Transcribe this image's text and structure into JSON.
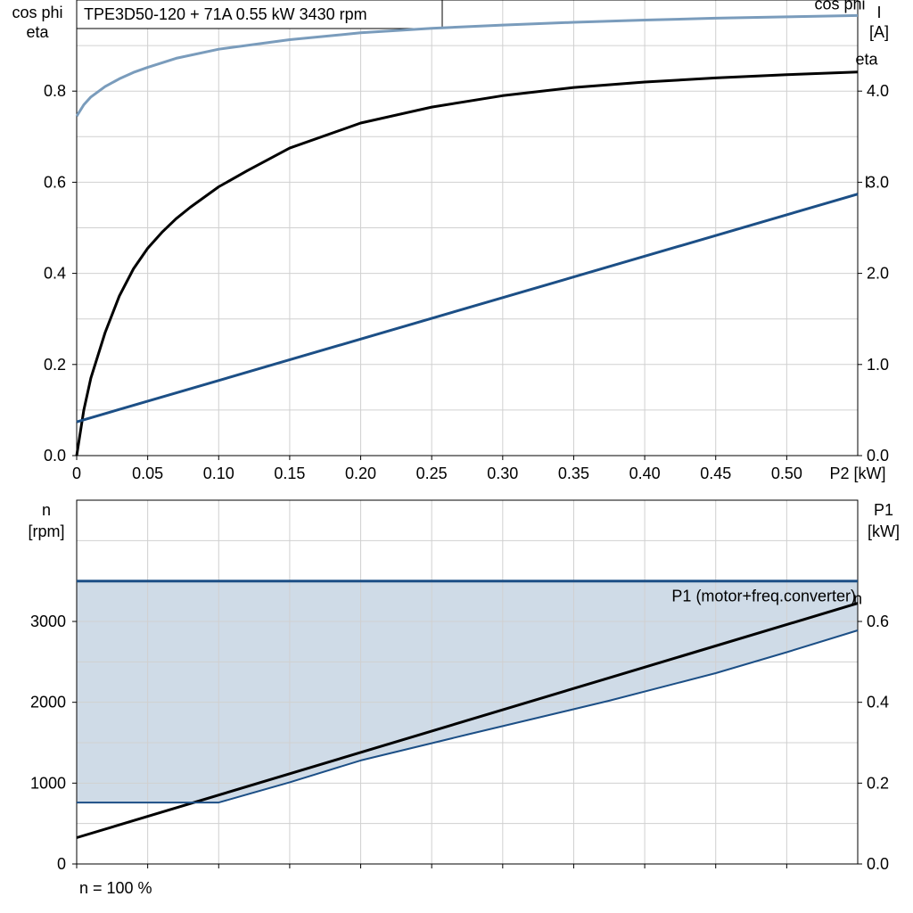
{
  "chart_data": [
    {
      "type": "line",
      "title": "TPE3D50-120 + 71A   0.55 kW   3430 rpm",
      "xlabel": "P2 [kW]",
      "ylabel_left": [
        "cos phi",
        "eta"
      ],
      "ylabel_right": [
        "I",
        "[A]"
      ],
      "xlim": [
        0,
        0.55
      ],
      "xticks": [
        0,
        0.05,
        0.1,
        0.15,
        0.2,
        0.25,
        0.3,
        0.35,
        0.4,
        0.45,
        0.5
      ],
      "xtick_labels": [
        "0",
        "0.05",
        "0.10",
        "0.15",
        "0.20",
        "0.25",
        "0.30",
        "0.35",
        "0.40",
        "0.45",
        "0.50"
      ],
      "ylim_left": [
        0,
        1.0
      ],
      "yticks_left": [
        0,
        0.2,
        0.4,
        0.6,
        0.8
      ],
      "ytick_labels_left": [
        "0.0",
        "0.2",
        "0.4",
        "0.6",
        "0.8"
      ],
      "ylim_right": [
        0,
        5.0
      ],
      "yticks_right": [
        0,
        1,
        2,
        3,
        4
      ],
      "ytick_labels_right": [
        "0.0",
        "1.0",
        "2.0",
        "3.0",
        "4.0"
      ],
      "grid": true,
      "series": [
        {
          "name": "cos phi",
          "axis": "left",
          "color": "#7a9cbc",
          "x": [
            0,
            0.005,
            0.01,
            0.02,
            0.03,
            0.04,
            0.05,
            0.07,
            0.1,
            0.15,
            0.2,
            0.25,
            0.3,
            0.35,
            0.4,
            0.45,
            0.5,
            0.55
          ],
          "y": [
            0.745,
            0.77,
            0.787,
            0.81,
            0.827,
            0.841,
            0.852,
            0.872,
            0.892,
            0.913,
            0.928,
            0.938,
            0.945,
            0.951,
            0.956,
            0.96,
            0.963,
            0.966
          ]
        },
        {
          "name": "eta",
          "axis": "left",
          "color": "#000000",
          "x": [
            0,
            0.005,
            0.01,
            0.02,
            0.03,
            0.04,
            0.05,
            0.06,
            0.07,
            0.08,
            0.1,
            0.12,
            0.15,
            0.2,
            0.25,
            0.3,
            0.35,
            0.4,
            0.45,
            0.5,
            0.55
          ],
          "y": [
            0.0,
            0.1,
            0.17,
            0.27,
            0.35,
            0.41,
            0.455,
            0.49,
            0.52,
            0.545,
            0.59,
            0.625,
            0.675,
            0.73,
            0.765,
            0.79,
            0.808,
            0.82,
            0.829,
            0.836,
            0.842
          ]
        },
        {
          "name": "I",
          "axis": "right",
          "color": "#1c4f86",
          "x": [
            0,
            0.55
          ],
          "y": [
            0.37,
            2.87
          ]
        }
      ]
    },
    {
      "type": "area",
      "xlabel": "",
      "ylabel_left": [
        "n",
        "[rpm]"
      ],
      "ylabel_right": [
        "P1",
        "[kW]"
      ],
      "xlim": [
        0,
        0.55
      ],
      "xticks": [
        0,
        0.05,
        0.1,
        0.15,
        0.2,
        0.25,
        0.3,
        0.35,
        0.4,
        0.45,
        0.5
      ],
      "ylim_left": [
        0,
        4000
      ],
      "yticks_left": [
        0,
        1000,
        2000,
        3000
      ],
      "ytick_labels_left": [
        "0",
        "1000",
        "2000",
        "3000"
      ],
      "ylim_right": [
        0,
        0.8
      ],
      "yticks_right": [
        0,
        0.2,
        0.4,
        0.6
      ],
      "ytick_labels_right": [
        "0.0",
        "0.2",
        "0.4",
        "0.6"
      ],
      "grid": true,
      "footnote": "n = 100 %",
      "band": {
        "color": "#cfdbe7",
        "upper": {
          "x": [
            0,
            0.55
          ],
          "y": [
            3500,
            3500
          ]
        },
        "lower": {
          "x": [
            0,
            0.1,
            0.15,
            0.2,
            0.275,
            0.375,
            0.45,
            0.5,
            0.55
          ],
          "y": [
            760,
            760,
            1010,
            1280,
            1600,
            2020,
            2360,
            2620,
            2890
          ]
        }
      },
      "series": [
        {
          "name": "n",
          "axis": "left",
          "color": "#1c4f86",
          "x": [
            0,
            0.55
          ],
          "y": [
            3500,
            3500
          ]
        },
        {
          "name": "P1 (motor+freq.converter)",
          "axis": "right",
          "color": "#000000",
          "x": [
            0,
            0.55
          ],
          "y": [
            0.065,
            0.645
          ]
        },
        {
          "name": "",
          "axis": "left",
          "color": "#1c4f86",
          "x": [
            0,
            0.1,
            0.15,
            0.2,
            0.275,
            0.375,
            0.45,
            0.5,
            0.55
          ],
          "y": [
            760,
            760,
            1010,
            1280,
            1600,
            2020,
            2360,
            2620,
            2890
          ]
        }
      ]
    }
  ]
}
